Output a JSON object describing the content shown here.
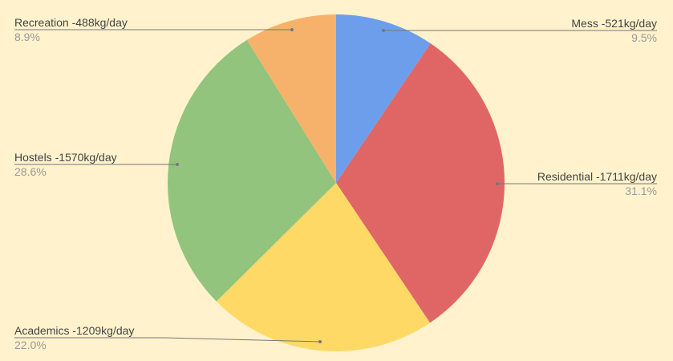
{
  "chart_data": {
    "type": "pie",
    "start_angle": "top",
    "direction": "clockwise",
    "background": "#fff2cc",
    "slices": [
      {
        "label": "Mess -521kg/day",
        "value": 521,
        "percent": "9.5%",
        "color": "#6d9eeb"
      },
      {
        "label": "Residential -1711kg/day",
        "value": 1711,
        "percent": "31.1%",
        "color": "#e06666"
      },
      {
        "label": "Academics -1209kg/day",
        "value": 1209,
        "percent": "22.0%",
        "color": "#ffd966"
      },
      {
        "label": "Hostels -1570kg/day",
        "value": 1570,
        "percent": "28.6%",
        "color": "#93c47d"
      },
      {
        "label": "Recreation -488kg/day",
        "value": 488,
        "percent": "8.9%",
        "color": "#f6b26b"
      }
    ]
  }
}
